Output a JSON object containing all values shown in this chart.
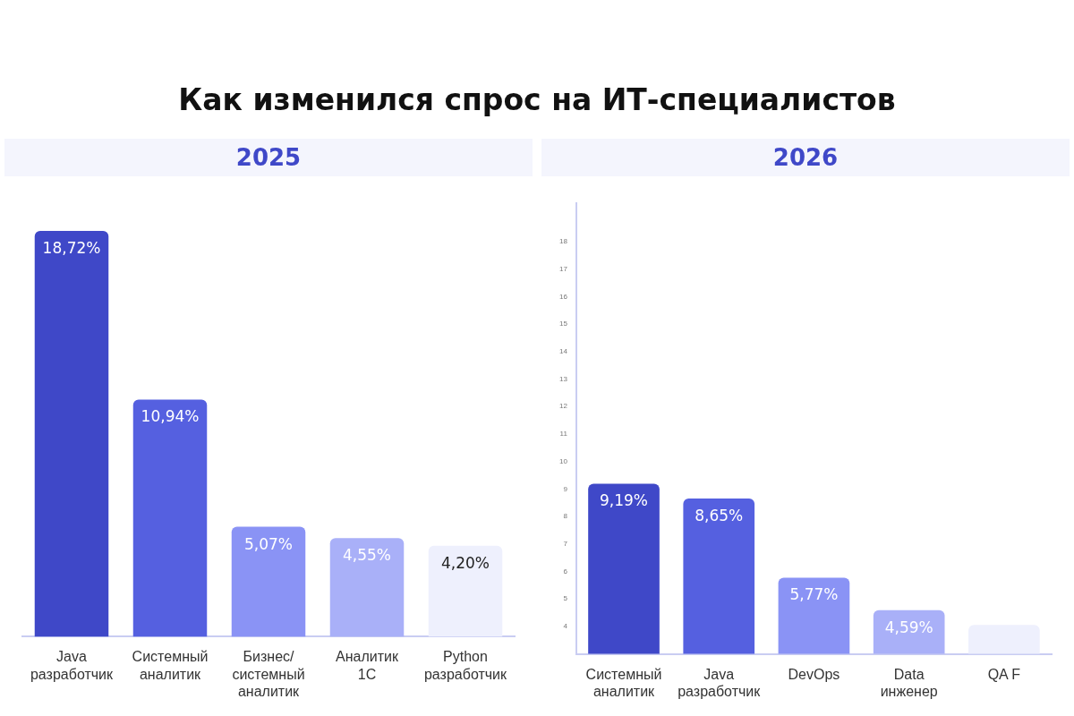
{
  "chart_data": [
    {
      "type": "bar",
      "title": "Как изменился спрос на ИТ-специалистов",
      "subtitle": "2025",
      "categories": [
        "Java разработчик",
        "Системный аналитик",
        "Бизнес/системный аналитик",
        "Аналитик 1С",
        "Python разработчик"
      ],
      "values": [
        18.72,
        10.94,
        5.07,
        4.55,
        4.2
      ],
      "value_labels": [
        "18,72%",
        "10,94%",
        "5,07%",
        "4,55%",
        "4,20%"
      ],
      "colors": [
        "#3f48c8",
        "#5560e0",
        "#8a93f5",
        "#a9b0f8",
        "#eef0fd"
      ],
      "tick_labels": "x",
      "grid": false,
      "legend": false
    },
    {
      "type": "bar",
      "subtitle": "2026",
      "categories": [
        "Системный аналитик",
        "Java разработчик",
        "DevOps",
        "Data инженер",
        "QA F"
      ],
      "values": [
        9.19,
        8.65,
        5.77,
        4.59,
        4.05
      ],
      "value_labels": [
        "9,19%",
        "8,65%",
        "5,77%",
        "4,59%",
        null
      ],
      "colors": [
        "#3f48c8",
        "#5560e0",
        "#8a93f5",
        "#a9b0f8",
        "#eef0fd"
      ],
      "ylim": [
        3,
        19.4
      ],
      "yticks": [
        4,
        5,
        6,
        7,
        8,
        9,
        10,
        11,
        12,
        13,
        14,
        15,
        16,
        17,
        18
      ],
      "grid": false,
      "legend": false
    }
  ]
}
